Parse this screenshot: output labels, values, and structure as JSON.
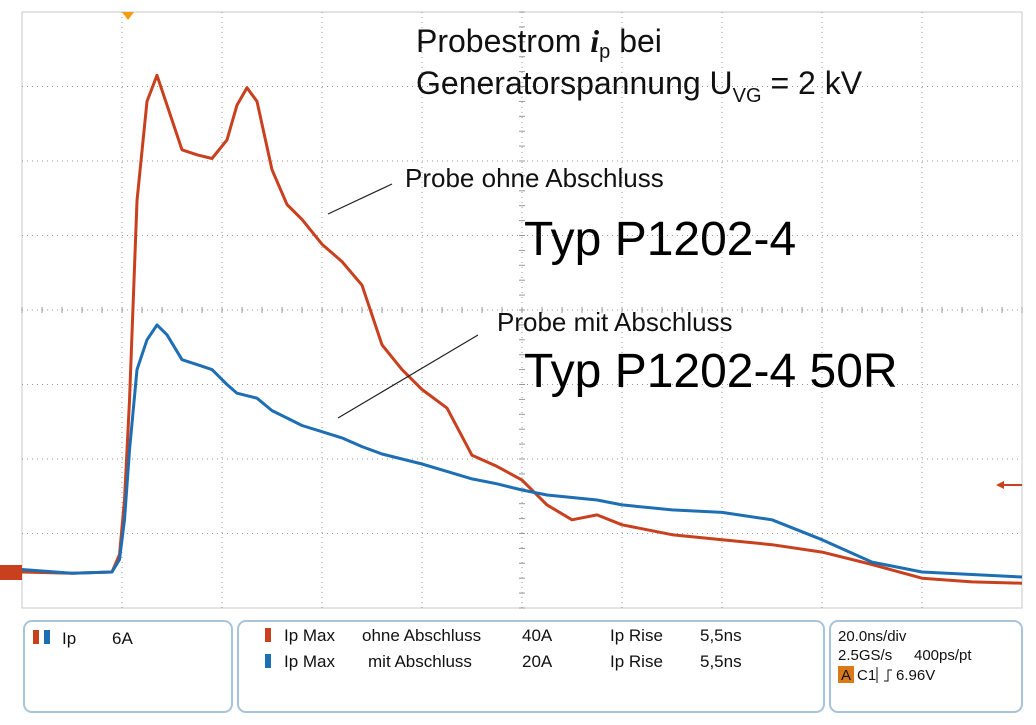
{
  "chart_data": {
    "type": "line",
    "title_line1": {
      "text": "Probestrom",
      "symbol": "i",
      "subscript": "p",
      "after": "bei"
    },
    "title_line2": {
      "text": "Generatorspannung U",
      "subscript": "VG",
      "after": "= 2 kV"
    },
    "annotations": [
      "Typ P1202-4",
      "Typ P1202-4 50R"
    ],
    "x": [
      0,
      10,
      18,
      19.5,
      20.5,
      21.5,
      23,
      25,
      27,
      29,
      32,
      35,
      38,
      41,
      43,
      45,
      47,
      50,
      53,
      56,
      60,
      64,
      68,
      72,
      76,
      80,
      85,
      90,
      95,
      100,
      105,
      110,
      115,
      120,
      130,
      140,
      150,
      160,
      170,
      180,
      190,
      200
    ],
    "xlim": [
      0,
      200
    ],
    "ylim": [
      -2.9,
      45.1
    ],
    "series": [
      {
        "name": "Probe ohne Abschluss",
        "color": "#c8401e",
        "values": [
          0,
          -0.1,
          0,
          1.4,
          5.8,
          13.8,
          29.9,
          37.9,
          40.0,
          37.6,
          34.0,
          33.6,
          33.3,
          34.8,
          37.6,
          39.0,
          37.9,
          32.4,
          29.6,
          28.4,
          26.4,
          25.0,
          23.1,
          18.3,
          16.3,
          14.7,
          13.2,
          9.4,
          8.5,
          7.4,
          5.4,
          4.2,
          4.6,
          3.8,
          3.0,
          2.6,
          2.2,
          1.6,
          0.6,
          -0.5,
          -0.8,
          -0.9
        ]
      },
      {
        "name": "Probe mit Abschluss",
        "color": "#1e6eb4",
        "values": [
          0.2,
          -0.1,
          0,
          1.0,
          4.2,
          9.8,
          16.3,
          18.7,
          19.9,
          19.1,
          17.1,
          16.7,
          16.3,
          15.1,
          14.4,
          14.2,
          14.0,
          13.0,
          12.4,
          11.8,
          11.3,
          10.8,
          10.1,
          9.5,
          9.1,
          8.7,
          8.1,
          7.5,
          7.1,
          6.6,
          6.2,
          6.0,
          5.8,
          5.4,
          5.0,
          4.8,
          4.2,
          2.6,
          0.8,
          0,
          -0.2,
          -0.4
        ]
      }
    ]
  },
  "status": {
    "channel": {
      "name": "Ip",
      "scale": "6A"
    },
    "measurements": [
      [
        "Ip Max",
        "ohne Abschluss",
        "40A",
        "Ip Rise",
        "5,5ns"
      ],
      [
        "Ip Max",
        "mit Abschluss",
        "20A",
        "Ip Rise",
        "5,5ns"
      ]
    ],
    "timebase": "20.0ns/div",
    "sample_rate": "2.5GS/s",
    "resolution": "400ps/pt",
    "trigger": {
      "mode": "A",
      "source": "C1",
      "level": "6.96V"
    }
  }
}
